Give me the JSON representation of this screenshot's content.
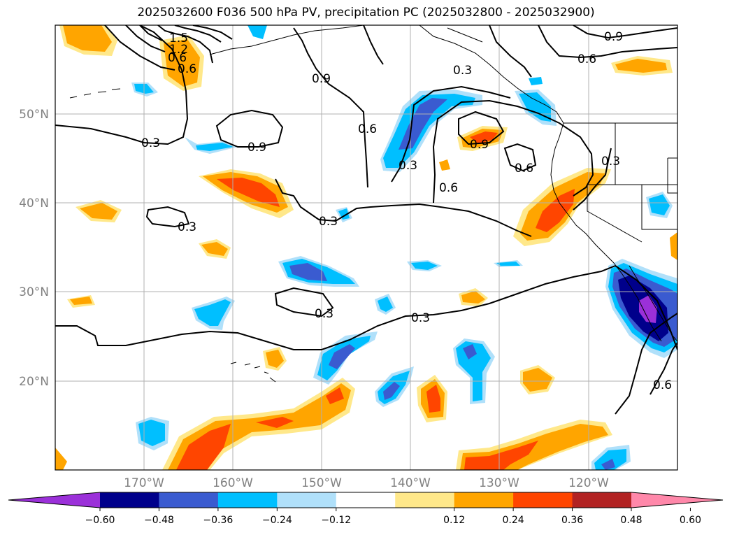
{
  "title": "2025032600 F036 500 hPa PV, precipitation PC (2025032800 - 2025032900)",
  "axes": {
    "lon_labels": [
      "170°W",
      "160°W",
      "150°W",
      "140°W",
      "130°W",
      "120°W"
    ],
    "lat_labels": [
      "50°N",
      "40°N",
      "30°N",
      "20°N"
    ]
  },
  "contour_labels": [
    "1.5",
    "1.2",
    "0.6",
    "0.6",
    "0.9",
    "0.3",
    "0.9",
    "0.6",
    "0.3",
    "0.9",
    "0.9",
    "0.6",
    "0.3",
    "0.6",
    "0.3",
    "0.6",
    "0.3",
    "0.3",
    "0.3",
    "0.6"
  ],
  "colorbar": {
    "ticks": [
      "−0.60",
      "−0.48",
      "−0.36",
      "−0.24",
      "−0.12",
      "0.12",
      "0.24",
      "0.36",
      "0.48",
      "0.60"
    ],
    "colors": [
      "#9b30d9",
      "#00008b",
      "#3a5bd0",
      "#00bfff",
      "#b0e0fa",
      "#ffffff",
      "#ffe88a",
      "#ffa500",
      "#ff4500",
      "#b22222",
      "#ff88aa"
    ]
  }
}
